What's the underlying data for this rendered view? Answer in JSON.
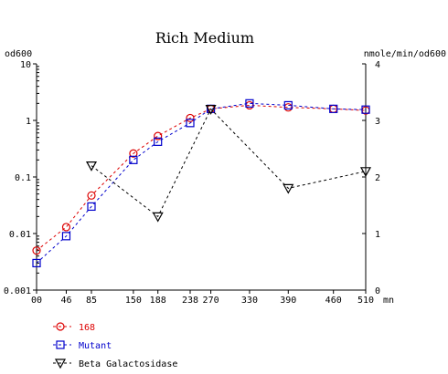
{
  "chart_data": {
    "type": "line",
    "title": "Rich Medium",
    "ylabel_left": "od600",
    "ylabel_right": "nmole/min/od600",
    "x_unit": "mn",
    "x_ticks": [
      0,
      46,
      85,
      150,
      188,
      238,
      270,
      330,
      390,
      460,
      510
    ],
    "x_tick_labels": [
      "00",
      "46",
      "85",
      "150",
      "188",
      "238",
      "270",
      "330",
      "390",
      "460",
      "510"
    ],
    "xlim": [
      0,
      510
    ],
    "left_axis": {
      "scale": "log",
      "ylim": [
        0.001,
        10
      ],
      "ticks": [
        0.001,
        0.01,
        0.1,
        1,
        10
      ],
      "tick_labels": [
        "0.001",
        "0.01",
        "0.1",
        "1",
        "10"
      ]
    },
    "right_axis": {
      "scale": "linear",
      "ylim": [
        0,
        4
      ],
      "ticks": [
        0,
        1,
        2,
        3,
        4
      ],
      "tick_labels": [
        "0",
        "1",
        "2",
        "3",
        "4"
      ]
    },
    "series": [
      {
        "name": "168",
        "axis": "left",
        "marker": "circle",
        "color": "#dd0000",
        "x": [
          0,
          46,
          85,
          150,
          188,
          238,
          270,
          330,
          390,
          460,
          510
        ],
        "y": [
          0.005,
          0.013,
          0.047,
          0.26,
          0.53,
          1.1,
          1.6,
          1.85,
          1.7,
          1.6,
          1.5
        ]
      },
      {
        "name": "Mutant",
        "axis": "left",
        "marker": "square",
        "color": "#0000cc",
        "x": [
          0,
          46,
          85,
          150,
          188,
          238,
          270,
          330,
          390,
          460,
          510
        ],
        "y": [
          0.003,
          0.009,
          0.03,
          0.2,
          0.42,
          0.9,
          1.6,
          2.0,
          1.85,
          1.6,
          1.55
        ]
      },
      {
        "name": "Beta Galactosidase",
        "axis": "right",
        "marker": "triangle-down",
        "color": "#000000",
        "x": [
          85,
          188,
          270,
          390,
          510
        ],
        "y": [
          2.2,
          1.3,
          3.2,
          1.8,
          2.1
        ]
      }
    ]
  }
}
